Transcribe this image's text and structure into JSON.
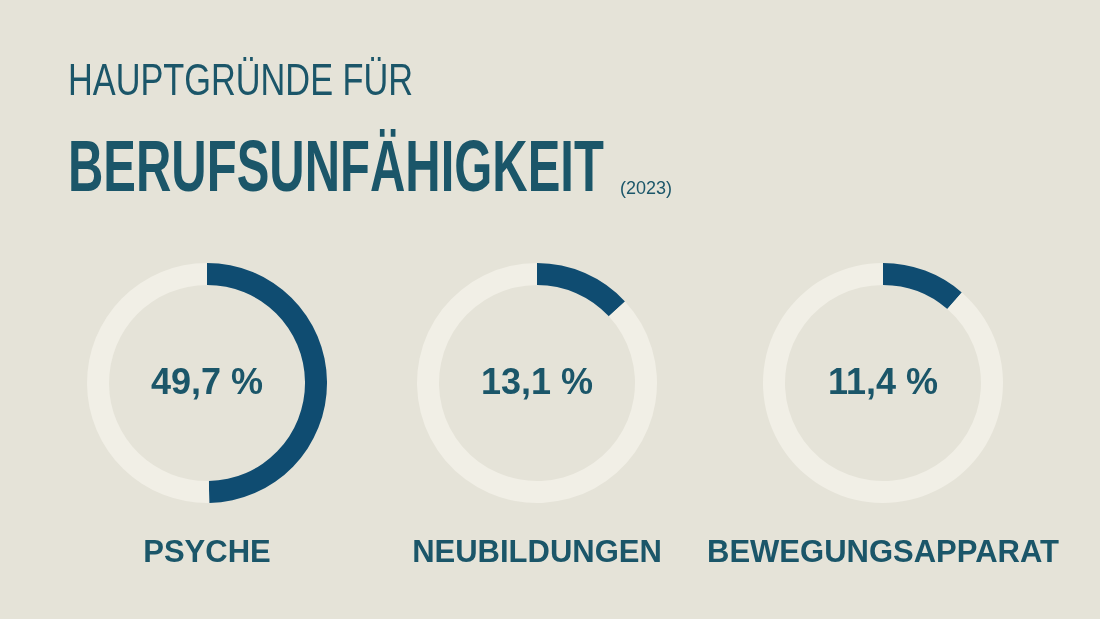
{
  "chart_data": [
    {
      "type": "other",
      "title": "HAUPTGRÜNDE FÜR",
      "subtitle": "BERUFSUNFÄHIGKEIT",
      "annotations": [
        "(2023)"
      ]
    },
    {
      "type": "donut",
      "title": "PSYCHE",
      "categories": [
        null,
        null
      ],
      "values": [
        49.7,
        50.3
      ],
      "colors": [
        "#0f4c71",
        "#f1efe6"
      ],
      "value_labels": [
        "49,7 %",
        null
      ]
    },
    {
      "type": "donut",
      "title": "NEUBILDUNGEN",
      "categories": [
        null,
        null
      ],
      "values": [
        13.1,
        86.9
      ],
      "colors": [
        "#0f4c71",
        "#f1efe6"
      ],
      "value_labels": [
        "13,1 %",
        null
      ]
    },
    {
      "type": "donut",
      "title": "BEWEGUNGSAPPARAT",
      "categories": [
        null,
        null
      ],
      "values": [
        11.4,
        88.6
      ],
      "colors": [
        "#0f4c71",
        "#f1efe6"
      ],
      "value_labels": [
        "11,4 %",
        null
      ]
    }
  ]
}
